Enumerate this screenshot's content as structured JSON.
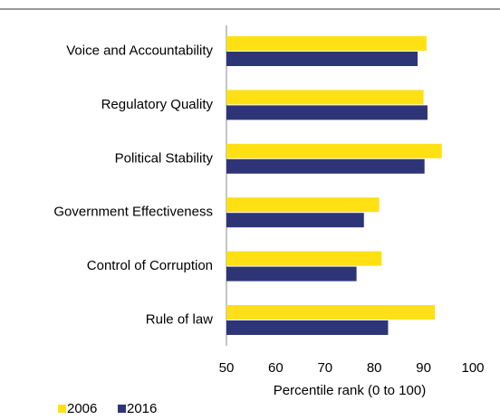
{
  "chart_data": {
    "type": "hbar",
    "categories": [
      "Voice and Accountability",
      "Regulatory Quality",
      "Political Stability",
      "Government Effectiveness",
      "Control of Corruption",
      "Rule of law"
    ],
    "series": [
      {
        "name": "2006",
        "color": "#ffe014",
        "values": [
          90.6,
          90,
          93.7,
          81,
          81.5,
          92.3
        ]
      },
      {
        "name": "2016",
        "color": "#2e3577",
        "values": [
          88.8,
          90.8,
          90.2,
          77.9,
          76.4,
          82.8
        ]
      }
    ],
    "xlabel": "Percentile rank (0 to 100)",
    "xlim": [
      50,
      100
    ],
    "xticks": [
      50,
      60,
      70,
      80,
      90,
      100
    ],
    "grid": false,
    "legend": "bottom-left"
  }
}
